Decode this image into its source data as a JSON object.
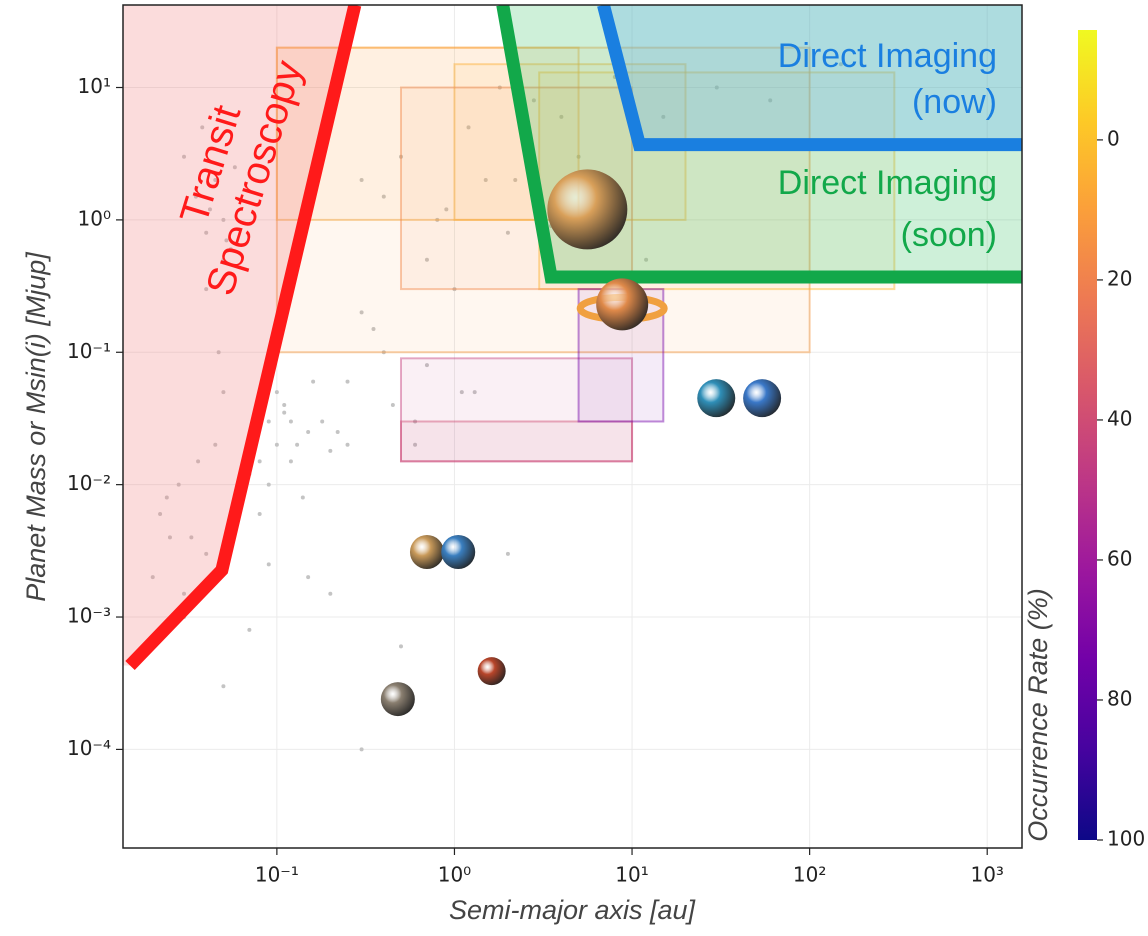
{
  "chart_data": {
    "type": "scatter",
    "x_label": "Semi-major axis [au]",
    "y_label": "Planet Mass or Msin(i) [Mjup]",
    "xscale": "log",
    "yscale": "log",
    "grid": true,
    "xlim": [
      0.0136,
      1570
    ],
    "ylim": [
      1.8e-05,
      42
    ],
    "xticks": [
      {
        "value": 0.1,
        "label": "10⁻¹"
      },
      {
        "value": 1,
        "label": "10⁰"
      },
      {
        "value": 10,
        "label": "10¹"
      },
      {
        "value": 100,
        "label": "10²"
      },
      {
        "value": 1000,
        "label": "10³"
      }
    ],
    "yticks": [
      {
        "value": 0.0001,
        "label": "10⁻⁴"
      },
      {
        "value": 0.001,
        "label": "10⁻³"
      },
      {
        "value": 0.01,
        "label": "10⁻²"
      },
      {
        "value": 0.1,
        "label": "10⁻¹"
      },
      {
        "value": 1,
        "label": "10⁰"
      },
      {
        "value": 10,
        "label": "10¹"
      }
    ],
    "series": [
      {
        "color": "#c4c4c4",
        "x": [
          0.1,
          0.12,
          0.08,
          0.15,
          0.09,
          0.11,
          0.13,
          0.07,
          0.18,
          0.2,
          0.1,
          0.14,
          0.06,
          0.09,
          0.12,
          0.16,
          0.22,
          0.25,
          0.08,
          0.11,
          0.05,
          0.04,
          0.045,
          0.05,
          0.035,
          0.04,
          0.03,
          0.055,
          0.042,
          0.038,
          0.05,
          0.045,
          0.06,
          0.028,
          0.033,
          0.047,
          0.052,
          0.04,
          0.036,
          0.058,
          0.3,
          0.4,
          0.5,
          0.8,
          1.2,
          1.5,
          2,
          2.5,
          3,
          4,
          1,
          1.8,
          2.2,
          0.7,
          0.9,
          3.5,
          5,
          0.35,
          1.3,
          2.8,
          0.02,
          0.025,
          0.03,
          0.022,
          0.026,
          0.018,
          0.03,
          0.024,
          0.7,
          1.1,
          0.6,
          0.4,
          0.3,
          8,
          15,
          30,
          60,
          150,
          12,
          0.05,
          0.15,
          0.2,
          0.07,
          0.09,
          0.3,
          0.5,
          0.6,
          2,
          0.45,
          0.25
        ],
        "values": [
          0.02,
          0.03,
          0.015,
          0.025,
          0.01,
          0.04,
          0.02,
          0.012,
          0.03,
          0.018,
          0.05,
          0.008,
          0.01,
          0.03,
          0.015,
          0.06,
          0.025,
          0.02,
          0.006,
          0.035,
          1,
          0.8,
          2,
          0.5,
          1.5,
          0.3,
          3,
          0.6,
          1.2,
          5,
          0.05,
          0.02,
          0.009,
          0.01,
          0.004,
          0.1,
          0.7,
          0.003,
          0.015,
          2.5,
          2,
          1.5,
          3,
          1,
          5,
          2,
          0.8,
          4,
          1.5,
          6,
          0.3,
          10,
          2,
          0.5,
          1.2,
          0.9,
          3,
          0.15,
          0.05,
          8,
          0.002,
          0.004,
          0.001,
          0.006,
          0.0009,
          0.0006,
          0.0015,
          0.008,
          0.08,
          0.05,
          0.02,
          0.1,
          0.2,
          12,
          6,
          10,
          8,
          15,
          0.5,
          0.0003,
          0.002,
          0.0015,
          0.0008,
          0.0025,
          0.0001,
          0.0006,
          0.03,
          0.003,
          0.04,
          0.06
        ]
      }
    ],
    "solar_system": {
      "x": [
        0.48,
        0.7,
        1.05,
        1.62,
        5.6,
        8.8,
        29.8,
        54
      ],
      "values": [
        0.00024,
        0.0031,
        0.0031,
        0.00039,
        1.2,
        0.23,
        0.045,
        0.045
      ],
      "colors": [
        "#8a7f70",
        "#c99a5a",
        "#3a7fc0",
        "#b8452a",
        "#d9a05a",
        "#e08a4a",
        "#2f8fb8",
        "#3a78c8"
      ]
    },
    "occurrence_bins": [
      {
        "x": [
          0.1,
          100
        ],
        "values": [
          0.1,
          20
        ],
        "rate": 12
      },
      {
        "x": [
          0.1,
          5
        ],
        "values": [
          1,
          20
        ],
        "rate": 8
      },
      {
        "x": [
          3,
          300
        ],
        "values": [
          0.3,
          13
        ],
        "rate": 3
      },
      {
        "x": [
          1,
          20
        ],
        "values": [
          1,
          15
        ],
        "rate": 5
      },
      {
        "x": [
          0.5,
          10
        ],
        "values": [
          0.3,
          10
        ],
        "rate": 18
      },
      {
        "x": [
          0.5,
          10
        ],
        "values": [
          0.015,
          0.09
        ],
        "rate": 45
      },
      {
        "x": [
          0.5,
          10
        ],
        "values": [
          0.015,
          0.03
        ],
        "rate": 40
      },
      {
        "x": [
          5,
          15
        ],
        "values": [
          0.03,
          0.3
        ],
        "rate": 75
      }
    ],
    "regions": [
      {
        "label": [
          "Transit",
          "Spectroscopy"
        ],
        "color": "#ff1a1a",
        "fill": "#f08080",
        "side": "left",
        "x": [
          0.0149,
          0.049,
          0.275
        ],
        "values": [
          0.00043,
          0.00226,
          42
        ]
      },
      {
        "label": [
          "Direct Imaging",
          "(soon)"
        ],
        "color": "#12a84a",
        "fill": "#50c878",
        "side": "right",
        "x": [
          1.87,
          3.5,
          1570
        ],
        "values": [
          42,
          0.37,
          0.37
        ]
      },
      {
        "label": [
          "Direct Imaging",
          "(now)"
        ],
        "color": "#1a7fe0",
        "fill": "#5aa8f0",
        "side": "right",
        "x": [
          6.9,
          11,
          1570
        ],
        "values": [
          42,
          3.7,
          3.7
        ]
      }
    ],
    "colorbar": {
      "label": "Occurrence Rate (%)",
      "colormap": "plasma",
      "lim": [
        -15.7,
        100
      ],
      "ticks": [
        0,
        20,
        40,
        60,
        80,
        100
      ]
    }
  }
}
